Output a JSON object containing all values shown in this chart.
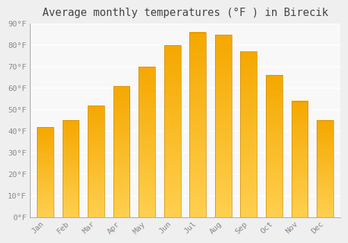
{
  "title": "Average monthly temperatures (°F ) in Birecik",
  "months": [
    "Jan",
    "Feb",
    "Mar",
    "Apr",
    "May",
    "Jun",
    "Jul",
    "Aug",
    "Sep",
    "Oct",
    "Nov",
    "Dec"
  ],
  "values": [
    42,
    45,
    52,
    61,
    70,
    80,
    86,
    85,
    77,
    66,
    54,
    45
  ],
  "bar_color_top": "#F5A800",
  "bar_color_bottom": "#FFD050",
  "bar_edge_color": "#CC8800",
  "ylim": [
    0,
    90
  ],
  "yticks": [
    0,
    10,
    20,
    30,
    40,
    50,
    60,
    70,
    80,
    90
  ],
  "background_color": "#EFEFEF",
  "plot_bg_color": "#F8F8F8",
  "grid_color": "#FFFFFF",
  "title_fontsize": 11,
  "tick_fontsize": 8,
  "bar_width": 0.65
}
